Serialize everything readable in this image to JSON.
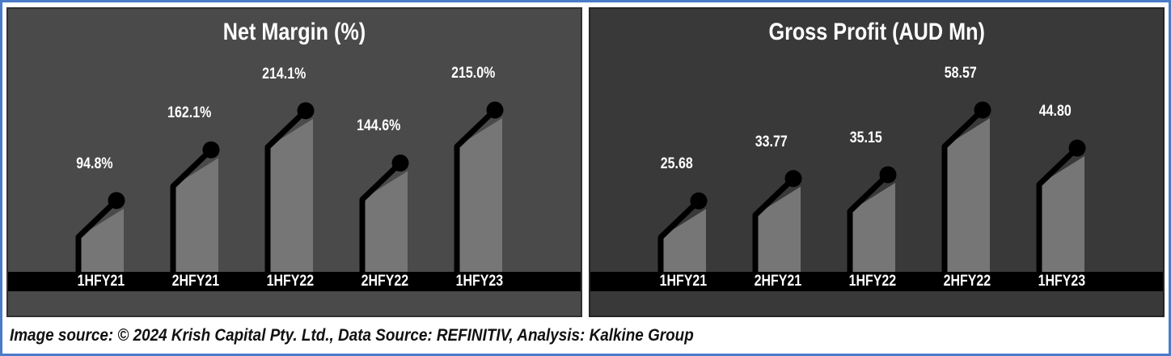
{
  "colors": {
    "frame_border": "#4a7bc9",
    "axis_band": "#000000",
    "bar_outline": "#000000",
    "label_text": "#ffffff",
    "footer_text": "#111111",
    "footer_bg": "#ffffff"
  },
  "chart_data": [
    {
      "type": "bar",
      "title": "Net Margin (%)",
      "categories": [
        "1HFY21",
        "2HFY21",
        "1HFY22",
        "2HFY22",
        "1HFY23"
      ],
      "values": [
        94.8,
        162.1,
        214.1,
        144.6,
        215.0
      ],
      "labels": [
        "94.8%",
        "162.1%",
        "214.1%",
        "144.6%",
        "215.0%"
      ],
      "xlabel": "",
      "ylabel": "Net Margin (%)",
      "legend": "none",
      "grid": false,
      "bg": "#4a4a4a",
      "bar_fill": "#767676"
    },
    {
      "type": "bar",
      "title": "Gross Profit (AUD Mn)",
      "categories": [
        "1HFY21",
        "2HFY21",
        "1HFY22",
        "2HFY22",
        "1HFY23"
      ],
      "values": [
        25.68,
        33.77,
        35.15,
        58.57,
        44.8
      ],
      "labels": [
        "25.68",
        "33.77",
        "35.15",
        "58.57",
        "44.80"
      ],
      "xlabel": "",
      "ylabel": "Gross Profit (AUD Mn)",
      "legend": "none",
      "grid": false,
      "bg": "#393939",
      "bar_fill": "#767676"
    }
  ],
  "footer": {
    "text": "Image source: © 2024 Krish Capital Pty. Ltd., Data Source: REFINITIV, Analysis: Kalkine Group"
  }
}
